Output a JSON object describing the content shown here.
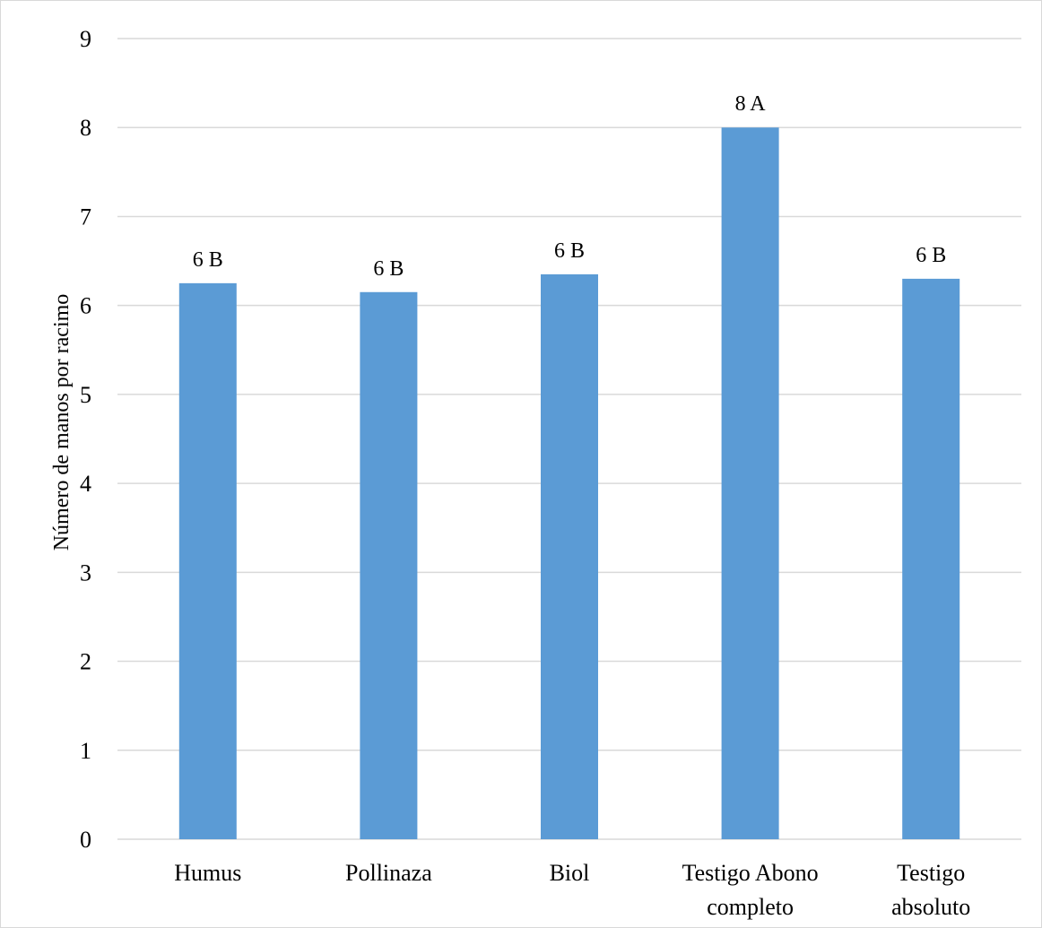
{
  "chart_data": {
    "type": "bar",
    "title": "",
    "xlabel": "",
    "ylabel": "Número de manos por racimo",
    "categories": [
      [
        "Humus"
      ],
      [
        "Pollinaza"
      ],
      [
        "Biol"
      ],
      [
        "Testigo Abono",
        "completo"
      ],
      [
        "Testigo",
        "absoluto"
      ]
    ],
    "values": [
      6.25,
      6.15,
      6.35,
      8.0,
      6.3
    ],
    "data_labels": [
      "6 B",
      "6 B",
      "6 B",
      "8 A",
      "6 B"
    ],
    "ylim": [
      0,
      9
    ],
    "yticks": [
      0,
      1,
      2,
      3,
      4,
      5,
      6,
      7,
      8,
      9
    ],
    "grid": true,
    "legend": "none",
    "bar_color": "#5b9bd5",
    "grid_color": "#d9d9d9"
  }
}
